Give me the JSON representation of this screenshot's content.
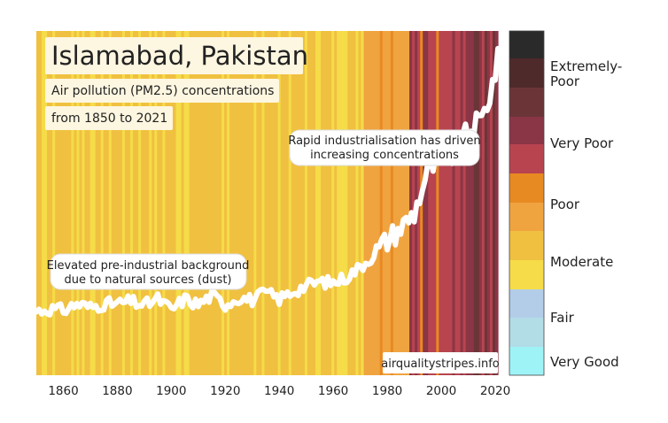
{
  "colors": {
    "very_good": "#9ef3f7",
    "fair_light": "#b3dde6",
    "fair": "#b3cde9",
    "moderate_light": "#f5dc48",
    "moderate": "#f0c040",
    "poor_light": "#f0a440",
    "poor": "#e88a22",
    "very_poor_light": "#b8444f",
    "very_poor": "#8a3646",
    "extremely_poor_light": "#6b3538",
    "extremely_poor": "#4e2a2a",
    "extremely_poor_dark": "#2a2a2a",
    "line": "#ffffff"
  },
  "chart_data": {
    "type": "line",
    "title": "Islamabad, Pakistan",
    "subtitle_lines": [
      "Air pollution (PM2.5) concentrations",
      "from 1850 to 2021"
    ],
    "xlim": [
      1850,
      2021
    ],
    "x_ticks": [
      "1860",
      "1880",
      "1900",
      "1920",
      "1940",
      "1960",
      "1980",
      "2000",
      "2020"
    ],
    "background": "warming-stripes style vertical bands, one per year, coloured by concentration category",
    "series": [
      {
        "x": [
          1850,
          1855,
          1860,
          1865,
          1870,
          1875,
          1880,
          1885,
          1890,
          1895,
          1900,
          1905,
          1910,
          1915,
          1920,
          1925,
          1930,
          1935,
          1940,
          1945,
          1950,
          1955,
          1960,
          1965,
          1970,
          1975,
          1980,
          1985,
          1990,
          1995,
          2000,
          2005,
          2010,
          2015,
          2018,
          2021
        ],
        "y": [
          13,
          13.5,
          13.2,
          14.5,
          13.8,
          14.5,
          14.5,
          15,
          14.2,
          15.5,
          13.3,
          15.5,
          14.4,
          16.2,
          14.4,
          15.8,
          15.3,
          16.8,
          15.5,
          17,
          18.2,
          19,
          18.8,
          20,
          22,
          24.5,
          27.5,
          30,
          33,
          41.5,
          44,
          45,
          49.5,
          52,
          57,
          64
        ]
      }
    ],
    "annotations": [
      "Elevated pre-industrial background due to natural sources (dust)",
      "Rapid industrialisation has driven increasing concentrations"
    ],
    "credit": "airqualitystripes.info",
    "legend_categories": [
      "Extremely-Poor",
      "Very Poor",
      "Poor",
      "Moderate",
      "Fair",
      "Very Good"
    ]
  },
  "ann1": {
    "line1": "Elevated pre-industrial background",
    "line2": "due to natural sources (dust)"
  },
  "ann2": {
    "line1": "Rapid industrialisation has driven",
    "line2": "increasing concentrations"
  },
  "legend": {
    "extremely_poor_a": "Extremely-",
    "extremely_poor_b": "Poor",
    "very_poor": "Very Poor",
    "poor": "Poor",
    "moderate": "Moderate",
    "fair": "Fair",
    "very_good": "Very Good"
  }
}
